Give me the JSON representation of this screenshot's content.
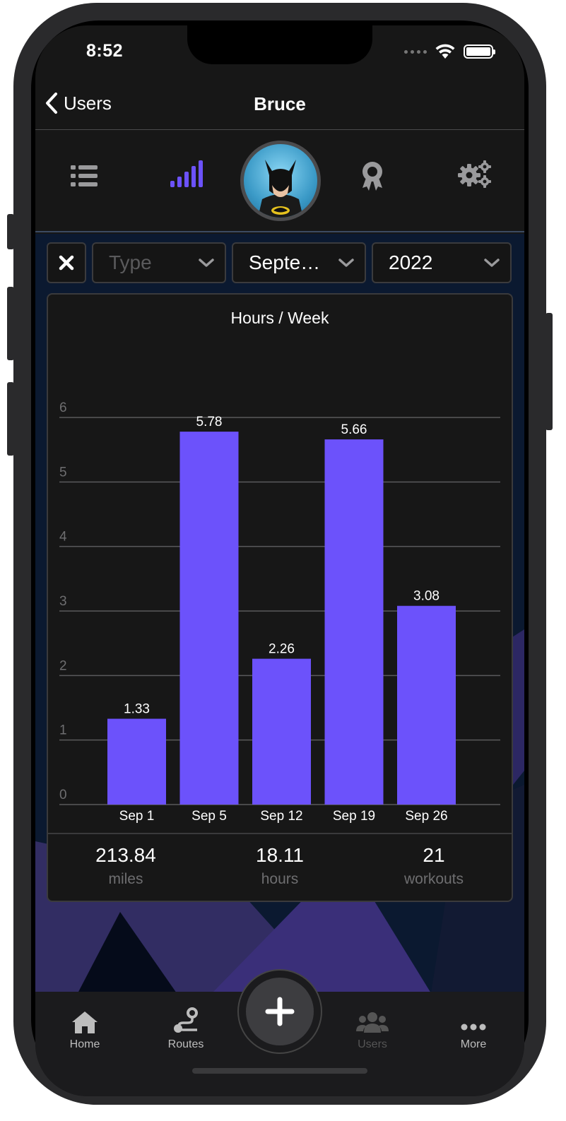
{
  "status": {
    "time": "8:52"
  },
  "nav": {
    "back_label": "Users",
    "title": "Bruce"
  },
  "iconbar": {
    "icons": [
      "list-icon",
      "signal-bars-icon",
      "avatar",
      "award-icon",
      "gears-icon"
    ],
    "accent": "#6c52fb"
  },
  "filters": {
    "clear_icon": "close-icon",
    "type": {
      "placeholder": "Type",
      "value": ""
    },
    "month": {
      "value": "Septe…"
    },
    "year": {
      "value": "2022"
    }
  },
  "chart_data": {
    "type": "bar",
    "title": "Hours / Week",
    "categories": [
      "Sep 1",
      "Sep 5",
      "Sep 12",
      "Sep 19",
      "Sep 26"
    ],
    "values": [
      1.33,
      5.78,
      2.26,
      5.66,
      3.08
    ],
    "value_labels": [
      "1.33",
      "5.78",
      "2.26",
      "5.66",
      "3.08"
    ],
    "ylim": [
      0,
      6
    ],
    "yticks": [
      "0",
      "1",
      "2",
      "3",
      "4",
      "5",
      "6"
    ],
    "grid": true,
    "bar_color": "#6c52fb"
  },
  "stats": [
    {
      "value": "213.84",
      "unit": "miles"
    },
    {
      "value": "18.11",
      "unit": "hours"
    },
    {
      "value": "21",
      "unit": "workouts"
    }
  ],
  "tabbar": {
    "tabs": [
      {
        "label": "Home",
        "icon": "home-icon"
      },
      {
        "label": "Routes",
        "icon": "route-icon"
      },
      {
        "label": "Users",
        "icon": "users-icon"
      },
      {
        "label": "More",
        "icon": "more-icon"
      }
    ],
    "fab_icon": "plus-icon"
  }
}
